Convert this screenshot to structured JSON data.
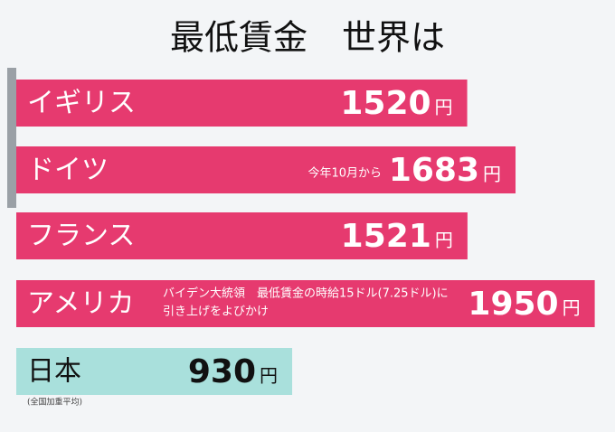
{
  "chart_data": {
    "type": "bar",
    "orientation": "horizontal",
    "title": "最低賃金　世界は",
    "categories": [
      "イギリス",
      "ドイツ",
      "フランス",
      "アメリカ",
      "日本"
    ],
    "values": [
      1520,
      1683,
      1521,
      1950,
      930
    ],
    "unit": "円",
    "colors": [
      "#e63a6f",
      "#e63a6f",
      "#e63a6f",
      "#e63a6f",
      "#a9e0dc"
    ],
    "notes": [
      [],
      [
        "今年10月から"
      ],
      [],
      [
        "バイデン大統領　最低賃金の時給15ドル(7.25ドル)に",
        "引き上げをよびかけ"
      ],
      [
        "(全国加重平均)"
      ]
    ]
  }
}
